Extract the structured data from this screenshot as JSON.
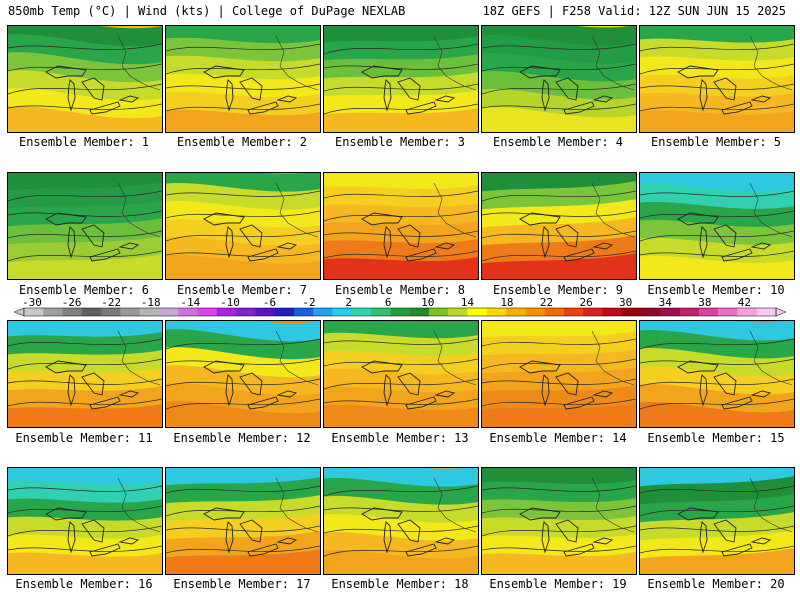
{
  "header": {
    "left": "850mb Temp (°C) | Wind (kts) | College of DuPage NEXLAB",
    "right": "18Z GEFS | F258 Valid: 12Z SUN JUN 15 2025"
  },
  "panels": [
    {
      "label": "Ensemble Member: 1"
    },
    {
      "label": "Ensemble Member: 2"
    },
    {
      "label": "Ensemble Member: 3"
    },
    {
      "label": "Ensemble Member: 4"
    },
    {
      "label": "Ensemble Member: 5"
    },
    {
      "label": "Ensemble Member: 6"
    },
    {
      "label": "Ensemble Member: 7"
    },
    {
      "label": "Ensemble Member: 8"
    },
    {
      "label": "Ensemble Member: 9"
    },
    {
      "label": "Ensemble Member: 10"
    },
    {
      "label": "Ensemble Member: 11"
    },
    {
      "label": "Ensemble Member: 12"
    },
    {
      "label": "Ensemble Member: 13"
    },
    {
      "label": "Ensemble Member: 14"
    },
    {
      "label": "Ensemble Member: 15"
    },
    {
      "label": "Ensemble Member: 16"
    },
    {
      "label": "Ensemble Member: 17"
    },
    {
      "label": "Ensemble Member: 18"
    },
    {
      "label": "Ensemble Member: 19"
    },
    {
      "label": "Ensemble Member: 20"
    }
  ],
  "color_scale": {
    "ticks": [
      "-30",
      "-26",
      "-22",
      "-18",
      "-14",
      "-10",
      "-6",
      "-2",
      "2",
      "6",
      "10",
      "14",
      "18",
      "22",
      "26",
      "30",
      "34",
      "38",
      "42"
    ],
    "colors": [
      "#c8c8c8",
      "#a0a0a0",
      "#808080",
      "#606060",
      "#787878",
      "#9a9a9a",
      "#b4b4b4",
      "#c8a8d8",
      "#d070e0",
      "#e040f0",
      "#b020e0",
      "#8020d0",
      "#6010c0",
      "#2020c0",
      "#1860e0",
      "#20a0f0",
      "#20d0f0",
      "#30d8b0",
      "#30c070",
      "#20a040",
      "#208c28",
      "#80c020",
      "#c0d820",
      "#ffff00",
      "#f8d800",
      "#f8b000",
      "#f89000",
      "#f86800",
      "#f04010",
      "#e02020",
      "#c80818",
      "#a00010",
      "#900828",
      "#a01050",
      "#c02070",
      "#e040a0",
      "#f070c8",
      "#f8a0e0",
      "#f8c8f0"
    ]
  }
}
